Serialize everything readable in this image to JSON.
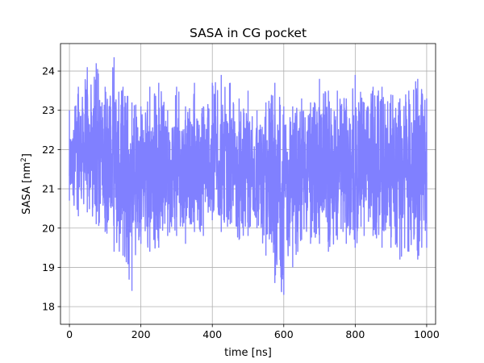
{
  "chart_data": {
    "type": "line",
    "title": "SASA in CG pocket",
    "xlabel": "time [ns]",
    "ylabel_main": "SASA [nm",
    "ylabel_sup": "2",
    "ylabel_end": "]",
    "xlim": [
      -25,
      1025
    ],
    "ylim": [
      17.55,
      24.7
    ],
    "xticks": [
      0,
      200,
      400,
      600,
      800,
      1000
    ],
    "xtick_labels": [
      "0",
      "200",
      "400",
      "600",
      "800",
      "1000"
    ],
    "yticks": [
      18,
      19,
      20,
      21,
      22,
      23,
      24
    ],
    "ytick_labels": [
      "18",
      "19",
      "20",
      "21",
      "22",
      "23",
      "24"
    ],
    "grid": true,
    "series": [
      {
        "color": "#8080ff",
        "x": [
          0,
          25,
          50,
          75,
          100,
          125,
          150,
          175,
          200,
          225,
          250,
          275,
          300,
          325,
          350,
          375,
          400,
          425,
          450,
          475,
          500,
          525,
          550,
          575,
          600,
          625,
          650,
          675,
          700,
          725,
          750,
          775,
          800,
          825,
          850,
          875,
          900,
          925,
          950,
          975,
          1000
        ],
        "upper": [
          23.0,
          23.6,
          24.1,
          24.2,
          23.6,
          24.35,
          23.6,
          23.2,
          23.1,
          23.6,
          23.7,
          23.0,
          23.6,
          23.1,
          23.7,
          23.1,
          23.7,
          23.9,
          23.7,
          23.3,
          23.5,
          23.0,
          23.2,
          23.7,
          23.1,
          23.1,
          23.3,
          23.2,
          23.8,
          23.5,
          23.5,
          23.3,
          23.9,
          23.2,
          23.6,
          23.6,
          23.4,
          23.3,
          23.5,
          23.8,
          23.3
        ],
        "lower": [
          20.7,
          20.3,
          20.4,
          20.1,
          19.9,
          19.4,
          19.3,
          18.4,
          19.6,
          19.4,
          19.5,
          19.8,
          19.8,
          19.6,
          19.9,
          19.8,
          20.2,
          19.9,
          20.1,
          19.7,
          19.8,
          20.0,
          19.3,
          18.6,
          18.3,
          19.0,
          19.7,
          19.6,
          19.6,
          19.4,
          19.7,
          19.6,
          19.5,
          19.8,
          19.8,
          19.5,
          19.5,
          19.2,
          19.4,
          19.2,
          19.5
        ],
        "mean": [
          21.6,
          21.9,
          22.0,
          21.9,
          21.8,
          21.7,
          21.5,
          21.3,
          21.4,
          21.4,
          21.6,
          21.5,
          21.5,
          21.5,
          21.6,
          21.6,
          21.7,
          21.6,
          21.6,
          21.5,
          21.5,
          21.4,
          21.2,
          20.9,
          20.8,
          21.3,
          21.5,
          21.6,
          21.7,
          21.6,
          21.6,
          21.5,
          21.6,
          21.6,
          21.7,
          21.6,
          21.6,
          21.5,
          21.6,
          21.6,
          21.6
        ]
      }
    ]
  }
}
